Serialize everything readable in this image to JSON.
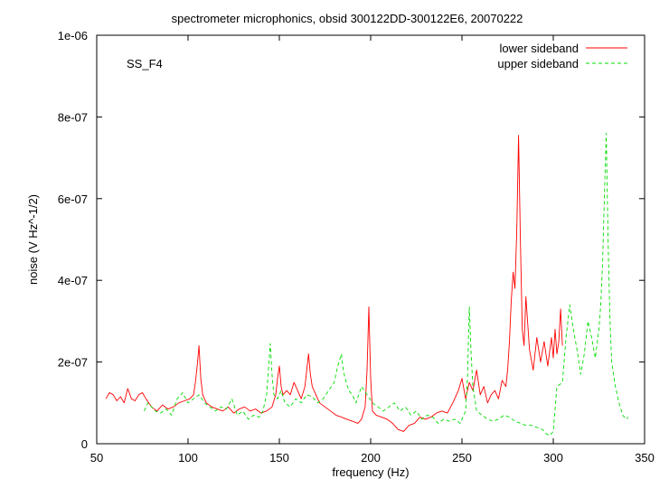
{
  "chart_data": {
    "type": "line",
    "title": "spectrometer microphonics, obsid 300122DD-300122E6, 20070222",
    "annotation": "SS_F4",
    "xlabel": "frequency (Hz)",
    "ylabel": "noise (V Hz^-1/2)",
    "xlim": [
      50,
      350
    ],
    "ylim": [
      0,
      1e-06
    ],
    "x_ticks": [
      50,
      100,
      150,
      200,
      250,
      300,
      350
    ],
    "x_tick_labels": [
      "50",
      "100",
      "150",
      "200",
      "250",
      "300",
      "350"
    ],
    "y_ticks": [
      0,
      2e-07,
      4e-07,
      6e-07,
      8e-07,
      1e-06
    ],
    "y_tick_labels": [
      "0",
      "2e-07",
      "4e-07",
      "6e-07",
      "8e-07",
      "1e-06"
    ],
    "grid": false,
    "legend_position": "top-right",
    "series": [
      {
        "name": "lower sideband",
        "color": "#ff0000",
        "dash": "solid",
        "x": [
          55,
          57,
          59,
          61,
          63,
          65,
          67,
          69,
          71,
          73,
          75,
          77,
          80,
          83,
          86,
          89,
          92,
          95,
          98,
          101,
          103,
          104,
          105,
          106,
          107,
          108,
          110,
          113,
          116,
          119,
          122,
          125,
          128,
          131,
          134,
          137,
          140,
          143,
          146,
          148,
          149,
          150,
          151,
          152,
          154,
          156,
          158,
          160,
          162,
          164,
          165,
          166,
          167,
          168,
          170,
          172,
          175,
          178,
          181,
          184,
          187,
          190,
          193,
          195,
          197,
          198,
          199,
          200,
          201,
          203,
          206,
          209,
          212,
          215,
          218,
          221,
          224,
          227,
          230,
          233,
          236,
          239,
          242,
          245,
          248,
          250,
          252,
          254,
          256,
          258,
          260,
          262,
          264,
          266,
          268,
          270,
          272,
          274,
          275,
          276,
          277,
          278,
          279,
          280,
          281,
          282,
          283,
          284,
          285,
          287,
          289,
          291,
          293,
          295,
          297,
          299,
          300,
          301,
          302,
          303,
          304,
          305
        ],
        "y": [
          1.1e-07,
          1.25e-07,
          1.2e-07,
          1.05e-07,
          1.15e-07,
          1e-07,
          1.35e-07,
          1.1e-07,
          1.05e-07,
          1.2e-07,
          1.25e-07,
          1.1e-07,
          9e-08,
          8e-08,
          9.5e-08,
          8.5e-08,
          9e-08,
          1e-07,
          1.05e-07,
          1.1e-07,
          1.2e-07,
          1.5e-07,
          1.9e-07,
          2.4e-07,
          1.6e-07,
          1.2e-07,
          1e-07,
          9e-08,
          8.5e-08,
          8e-08,
          9e-08,
          7.5e-08,
          8.5e-08,
          9e-08,
          8e-08,
          8.5e-08,
          7.5e-08,
          8e-08,
          9e-08,
          1.2e-07,
          1.6e-07,
          1.9e-07,
          1.4e-07,
          1.2e-07,
          1.3e-07,
          1.2e-07,
          1.5e-07,
          1.3e-07,
          1.1e-07,
          1.4e-07,
          1.8e-07,
          2.2e-07,
          1.7e-07,
          1.4e-07,
          1.2e-07,
          1e-07,
          9e-08,
          8e-08,
          7e-08,
          6.5e-08,
          6e-08,
          5.5e-08,
          5e-08,
          6e-08,
          9e-08,
          1.8e-07,
          3.35e-07,
          1.6e-07,
          8e-08,
          7e-08,
          6.5e-08,
          6e-08,
          5e-08,
          3.5e-08,
          3e-08,
          4.5e-08,
          5e-08,
          6.5e-08,
          6e-08,
          6.5e-08,
          7.5e-08,
          8e-08,
          7.5e-08,
          1e-07,
          1.3e-07,
          1.6e-07,
          1.1e-07,
          1.5e-07,
          1.3e-07,
          1.8e-07,
          1.2e-07,
          1.4e-07,
          1e-07,
          1.2e-07,
          1.3e-07,
          1.1e-07,
          1.55e-07,
          1.4e-07,
          1.8e-07,
          2.5e-07,
          3.5e-07,
          4.2e-07,
          3.8e-07,
          5.2e-07,
          7.55e-07,
          5e-07,
          2.8e-07,
          2.4e-07,
          3.6e-07,
          2.3e-07,
          1.8e-07,
          2.6e-07,
          2e-07,
          2.5e-07,
          1.9e-07,
          2.6e-07,
          2.1e-07,
          2.8e-07,
          2.2e-07,
          2.5e-07,
          3.3e-07,
          2.4e-07
        ]
      },
      {
        "name": "upper sideband",
        "color": "#00dd00",
        "dash": "4,3",
        "x": [
          76,
          78,
          80,
          82,
          85,
          88,
          91,
          94,
          97,
          100,
          103,
          106,
          109,
          112,
          115,
          118,
          121,
          124,
          127,
          130,
          133,
          136,
          139,
          141,
          143,
          144,
          145,
          146,
          147,
          149,
          151,
          153,
          156,
          159,
          162,
          165,
          168,
          171,
          174,
          177,
          180,
          182,
          184,
          185,
          186,
          188,
          190,
          192,
          195,
          198,
          201,
          204,
          207,
          210,
          213,
          216,
          219,
          222,
          225,
          228,
          231,
          234,
          237,
          240,
          243,
          246,
          249,
          252,
          253,
          254,
          255,
          256,
          258,
          261,
          264,
          267,
          270,
          273,
          276,
          279,
          282,
          285,
          288,
          291,
          294,
          296,
          298,
          300,
          302,
          305,
          307,
          309,
          311,
          313,
          315,
          317,
          319,
          321,
          323,
          325,
          326,
          327,
          328,
          329,
          330,
          331,
          332,
          334,
          336,
          338,
          340,
          341
        ],
        "y": [
          8e-08,
          1e-07,
          9e-08,
          8e-08,
          7.5e-08,
          8.5e-08,
          7e-08,
          1.1e-07,
          1.25e-07,
          1e-07,
          1.1e-07,
          1.2e-07,
          1e-07,
          9e-08,
          8e-08,
          9e-08,
          8.5e-08,
          1.1e-07,
          7e-08,
          8e-08,
          6e-08,
          7e-08,
          6.5e-08,
          8e-08,
          1.2e-07,
          1.8e-07,
          2.45e-07,
          1.7e-07,
          1.2e-07,
          1.1e-07,
          1.3e-07,
          1e-07,
          9e-08,
          1.1e-07,
          1e-07,
          1.2e-07,
          1.15e-07,
          1e-07,
          1.1e-07,
          1.3e-07,
          1.5e-07,
          1.9e-07,
          2.2e-07,
          1.8e-07,
          1.6e-07,
          1.3e-07,
          1.2e-07,
          1e-07,
          1.4e-07,
          1.2e-07,
          1e-07,
          9e-08,
          8e-08,
          9e-08,
          1e-07,
          8e-08,
          9e-08,
          7e-08,
          8e-08,
          6e-08,
          7e-08,
          6.5e-08,
          5e-08,
          6e-08,
          5.5e-08,
          6e-08,
          5e-08,
          8e-08,
          1.6e-07,
          3.35e-07,
          2.2e-07,
          1.4e-07,
          8e-08,
          7e-08,
          6e-08,
          5.5e-08,
          6e-08,
          7e-08,
          6.5e-08,
          5.5e-08,
          5e-08,
          4.5e-08,
          4.5e-08,
          4e-08,
          3.5e-08,
          2.5e-08,
          2e-08,
          3e-08,
          1.4e-07,
          1.5e-07,
          2.6e-07,
          3.4e-07,
          2.8e-07,
          2.3e-07,
          1.7e-07,
          2.2e-07,
          3e-07,
          2.6e-07,
          2.1e-07,
          2.8e-07,
          3.4e-07,
          4.4e-07,
          6.1e-07,
          7.6e-07,
          5e-07,
          3.1e-07,
          2e-07,
          1.4e-07,
          1e-07,
          7e-08,
          6e-08,
          6.5e-08
        ]
      }
    ]
  }
}
